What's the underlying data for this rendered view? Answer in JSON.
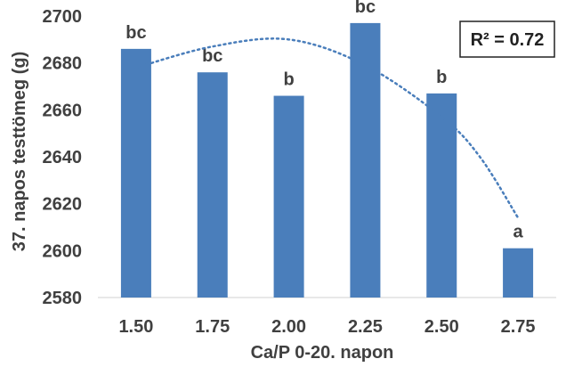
{
  "chart_data": {
    "type": "bar",
    "categories": [
      "1.50",
      "1.75",
      "2.00",
      "2.25",
      "2.50",
      "2.75"
    ],
    "values": [
      2686,
      2676,
      2666,
      2697,
      2667,
      2601
    ],
    "bar_labels": [
      "bc",
      "bc",
      "b",
      "bc",
      "b",
      "a"
    ],
    "xlabel": "Ca/P  0-20. napon",
    "ylabel": "37. napos testtömeg (g)",
    "ylim": [
      2580,
      2700
    ],
    "yticks": [
      "2580",
      "2600",
      "2620",
      "2640",
      "2660",
      "2680",
      "2700"
    ],
    "grid": false,
    "bar_color": "#4a7ebb",
    "trendline": {
      "type": "polynomial",
      "style": "dotted",
      "color": "#4a7ebb",
      "points": [
        [
          1.5,
          2678
        ],
        [
          1.75,
          2687
        ],
        [
          2.0,
          2690
        ],
        [
          2.25,
          2679
        ],
        [
          2.5,
          2657
        ],
        [
          2.625,
          2640
        ],
        [
          2.75,
          2614
        ]
      ]
    },
    "annotation": {
      "text": "R² = 0.72",
      "placement": "top-right"
    }
  }
}
